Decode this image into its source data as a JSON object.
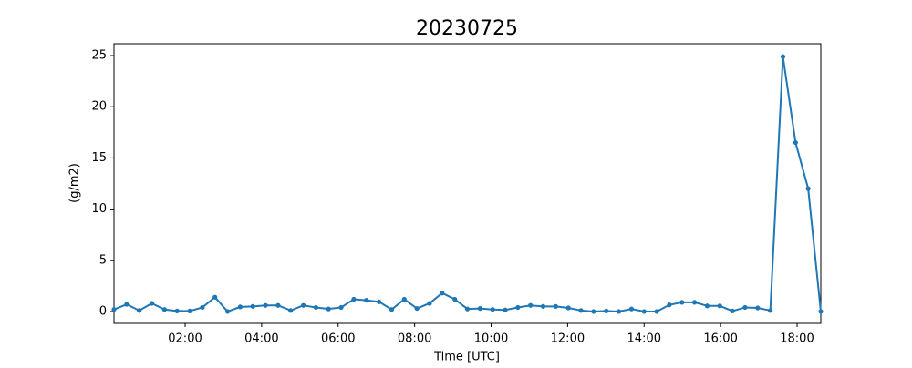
{
  "chart_data": {
    "type": "line",
    "title": "20230725",
    "x_label": "Time [UTC]",
    "y_label": "(g/m2)",
    "x": [
      0.14,
      0.47,
      0.8,
      1.13,
      1.46,
      1.79,
      2.12,
      2.45,
      2.78,
      3.11,
      3.44,
      3.77,
      4.1,
      4.43,
      4.76,
      5.09,
      5.42,
      5.75,
      6.08,
      6.41,
      6.74,
      7.07,
      7.4,
      7.73,
      8.06,
      8.39,
      8.72,
      9.05,
      9.38,
      9.71,
      10.04,
      10.37,
      10.7,
      11.03,
      11.36,
      11.69,
      12.02,
      12.35,
      12.68,
      13.01,
      13.34,
      13.67,
      14.0,
      14.33,
      14.66,
      14.99,
      15.32,
      15.65,
      15.98,
      16.31,
      16.64,
      16.97,
      17.3,
      17.63,
      17.96,
      18.29,
      18.62
    ],
    "series": [
      {
        "color": "#1f77b4",
        "values": [
          0.2,
          0.7,
          0.1,
          0.8,
          0.2,
          0.05,
          0.05,
          0.4,
          1.4,
          0.0,
          0.45,
          0.5,
          0.6,
          0.6,
          0.1,
          0.6,
          0.4,
          0.25,
          0.4,
          1.2,
          1.1,
          0.95,
          0.2,
          1.2,
          0.3,
          0.8,
          1.8,
          1.2,
          0.25,
          0.3,
          0.2,
          0.15,
          0.4,
          0.6,
          0.5,
          0.5,
          0.35,
          0.1,
          0.0,
          0.05,
          0.0,
          0.25,
          0.0,
          0.0,
          0.65,
          0.9,
          0.9,
          0.55,
          0.55,
          0.05,
          0.4,
          0.35,
          0.1,
          24.9,
          16.5,
          12.0,
          0.0
        ]
      }
    ],
    "xlim": [
      0.14,
      18.62
    ],
    "xticks": [
      {
        "value": 2,
        "label": "02:00"
      },
      {
        "value": 4,
        "label": "04:00"
      },
      {
        "value": 6,
        "label": "06:00"
      },
      {
        "value": 8,
        "label": "08:00"
      },
      {
        "value": 10,
        "label": "10:00"
      },
      {
        "value": 12,
        "label": "12:00"
      },
      {
        "value": 14,
        "label": "14:00"
      },
      {
        "value": 16,
        "label": "16:00"
      },
      {
        "value": 18,
        "label": "18:00"
      }
    ],
    "ylim": [
      -1.16,
      26.16
    ],
    "yticks": [
      0,
      5,
      10,
      15,
      20,
      25
    ],
    "grid": false
  }
}
